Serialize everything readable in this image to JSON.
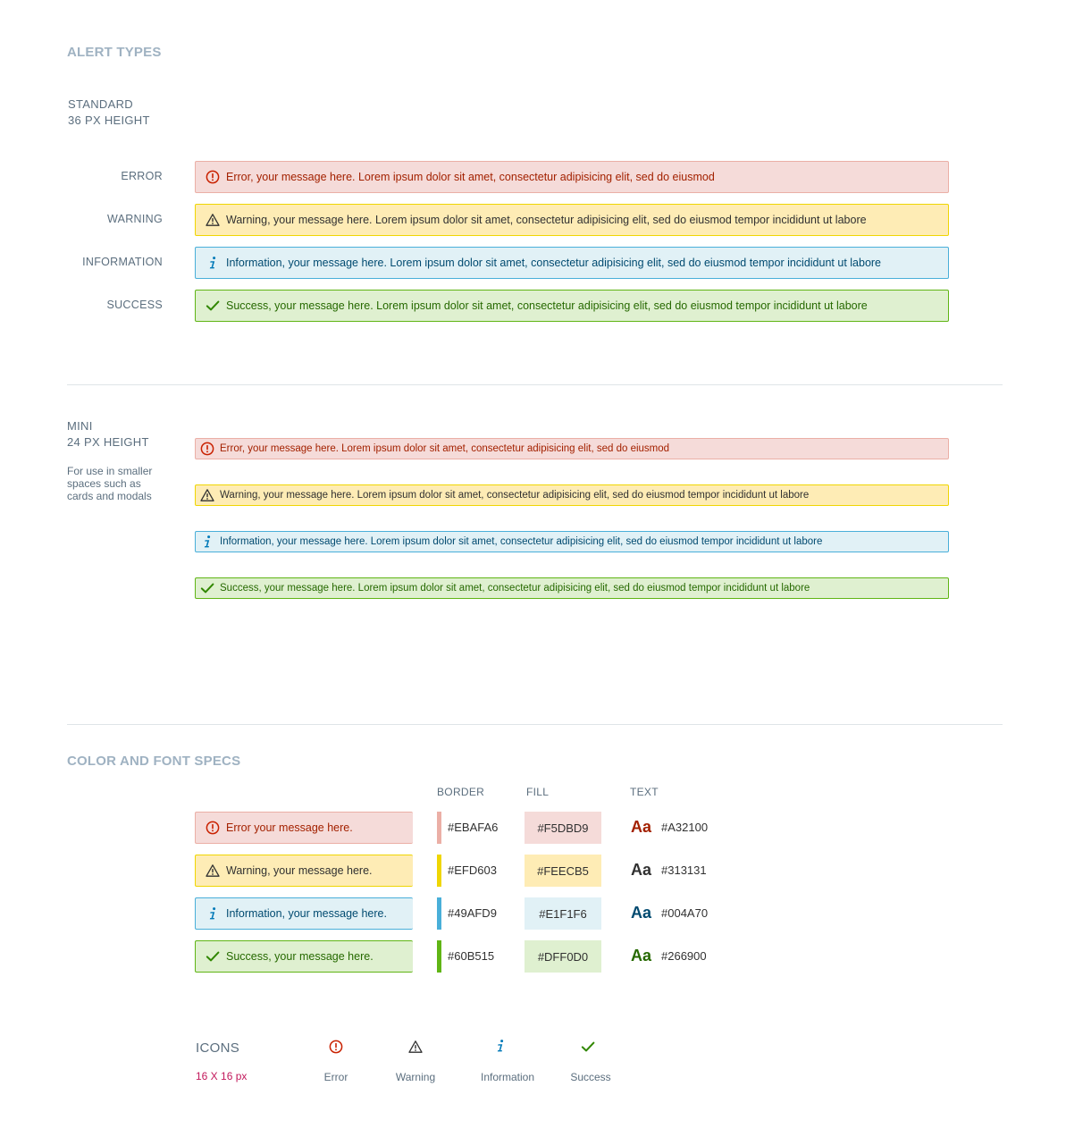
{
  "alert_types": {
    "title": "ALERT TYPES",
    "standard": {
      "label_line1": "STANDARD",
      "label_line2": "36 PX HEIGHT",
      "rows": [
        {
          "label": "ERROR",
          "message": "Error, your message here. Lorem ipsum dolor sit amet, consectetur adipisicing elit, sed do eiusmod"
        },
        {
          "label": "WARNING",
          "message": "Warning, your message here. Lorem ipsum dolor sit amet, consectetur adipisicing elit, sed do eiusmod tempor incididunt ut labore"
        },
        {
          "label": "INFORMATION",
          "message": "Information, your message here. Lorem ipsum dolor sit amet, consectetur adipisicing elit, sed do eiusmod tempor incididunt ut labore"
        },
        {
          "label": "SUCCESS",
          "message": "Success, your message here. Lorem ipsum dolor sit amet, consectetur adipisicing elit, sed do eiusmod tempor incididunt ut labore"
        }
      ]
    },
    "mini": {
      "label_line1": "MINI",
      "label_line2": "24 PX HEIGHT",
      "description": "For use in smaller spaces such as cards and modals",
      "messages": [
        "Error, your message here. Lorem ipsum dolor sit amet, consectetur adipisicing elit, sed do eiusmod",
        "Warning, your message here. Lorem ipsum dolor sit amet, consectetur adipisicing elit, sed do eiusmod tempor incididunt ut labore",
        "Information, your message here. Lorem ipsum dolor sit amet, consectetur adipisicing elit, sed do eiusmod tempor incididunt ut labore",
        "Success, your message here. Lorem ipsum dolor sit amet, consectetur adipisicing elit, sed do eiusmod tempor incididunt ut labore"
      ]
    }
  },
  "specs": {
    "title": "COLOR AND FONT SPECS",
    "headers": {
      "border": "BORDER",
      "fill": "FILL",
      "text": "TEXT"
    },
    "aa_sample": "Aa",
    "rows": [
      {
        "message": "Error your message here.",
        "border": "#EBAFA6",
        "fill": "#F5DBD9",
        "text": "#A32100"
      },
      {
        "message": "Warning, your message here.",
        "border": "#EFD603",
        "fill": "#FEECB5",
        "text": "#313131"
      },
      {
        "message": "Information, your message here.",
        "border": "#49AFD9",
        "fill": "#E1F1F6",
        "text": "#004A70"
      },
      {
        "message": "Success, your message here.",
        "border": "#60B515",
        "fill": "#DFF0D0",
        "text": "#266900"
      }
    ]
  },
  "icons": {
    "title": "ICONS",
    "size": "16 X 16 px",
    "items": [
      {
        "icon": "error-icon",
        "label": "Error"
      },
      {
        "icon": "warning-icon",
        "label": "Warning"
      },
      {
        "icon": "information-icon",
        "label": "Information"
      },
      {
        "icon": "success-icon",
        "label": "Success"
      }
    ]
  },
  "colors": {
    "section_title": "#9fb2c2",
    "label": "#5b6e7e",
    "icons_size_label": "#c2185b"
  }
}
